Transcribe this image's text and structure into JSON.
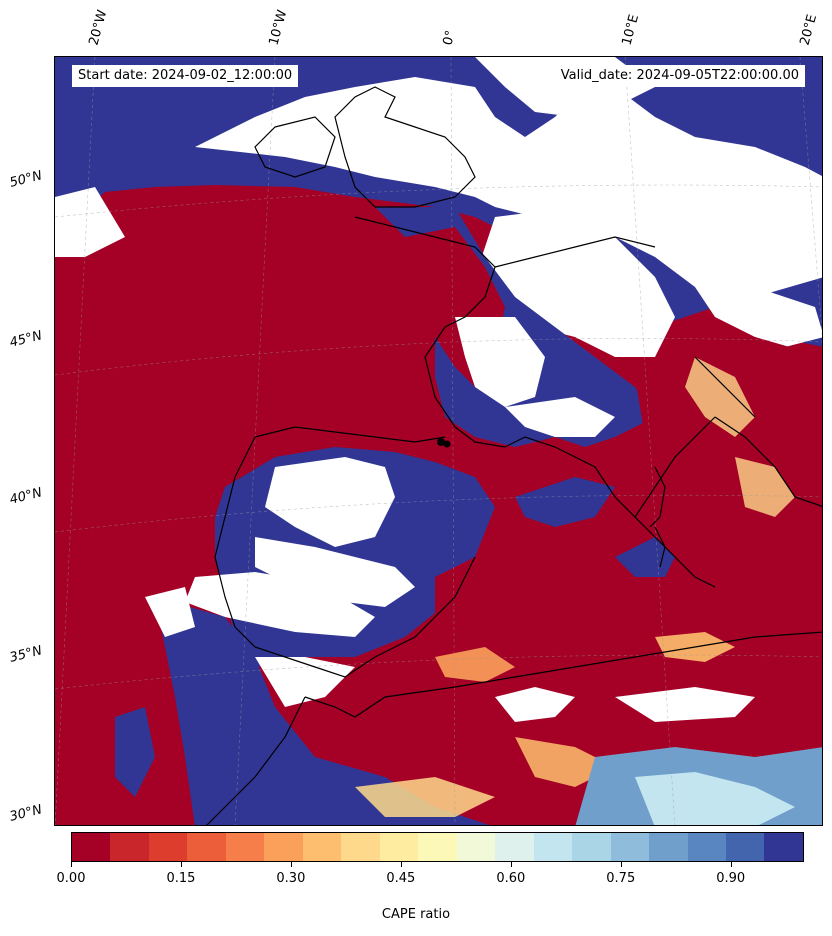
{
  "header": {
    "start_date": "Start date: 2024-09-02_12:00:00",
    "valid_date": "Valid_date: 2024-09-05T22:00:00.00"
  },
  "longitude_labels": [
    "20°W",
    "10°W",
    "0°",
    "10°E",
    "20°E"
  ],
  "latitude_labels": [
    "50°N",
    "45°N",
    "40°N",
    "35°N",
    "30°N"
  ],
  "colorbar": {
    "title": "CAPE ratio",
    "tick_labels": [
      "0.00",
      "0.15",
      "0.30",
      "0.45",
      "0.60",
      "0.75",
      "0.90"
    ],
    "range": [
      0,
      1
    ],
    "colors": [
      "#a50026",
      "#c8262a",
      "#dd3d2d",
      "#ec5d3a",
      "#f67e4b",
      "#fba05b",
      "#fdbf6f",
      "#fed98b",
      "#feeda1",
      "#fbf8b8",
      "#f1f9d8",
      "#def1ec",
      "#c3e5f0",
      "#a9d5e7",
      "#8ebcda",
      "#719fcc",
      "#5985c0",
      "#4365ad",
      "#313695"
    ]
  },
  "map": {
    "land_high_ratio_color": "#313695",
    "low_ratio_color": "#a50026",
    "missing_color": "#ffffff",
    "coastline_color": "#000000"
  }
}
